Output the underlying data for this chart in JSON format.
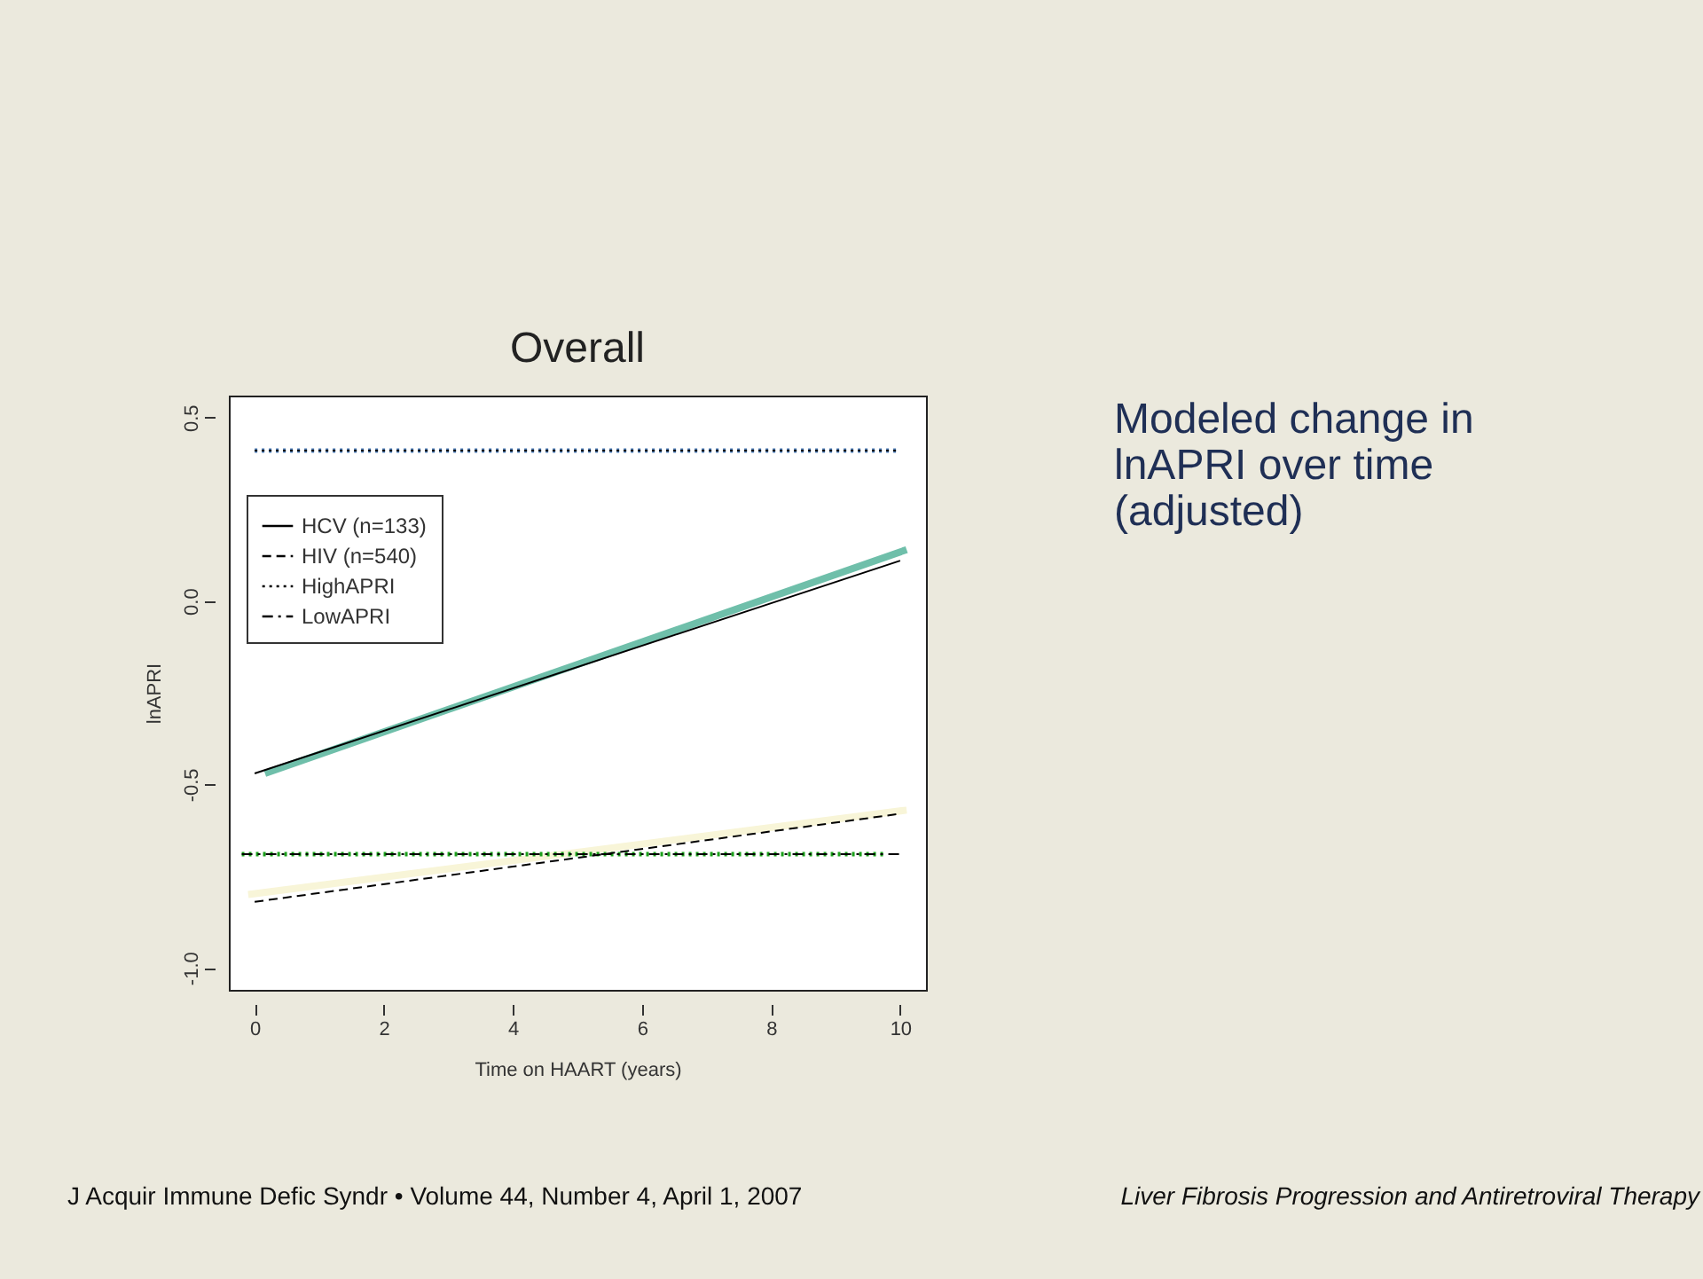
{
  "chart_data": {
    "type": "line",
    "title": "Overall",
    "xlabel": "Time on HAART (years)",
    "ylabel": "lnAPRI",
    "xlim": [
      -0.4,
      10.4
    ],
    "xticks": [
      0,
      2,
      4,
      6,
      8,
      10
    ],
    "ylim": [
      -1.06,
      0.56
    ],
    "yticks": [
      {
        "value": -1.0,
        "label": "-1.0"
      },
      {
        "value": -0.5,
        "label": "-0.5"
      },
      {
        "value": 0.0,
        "label": "0.0"
      },
      {
        "value": 0.5,
        "label": "0.5"
      }
    ],
    "grid": false,
    "legend": "top left",
    "marker": "none",
    "series": [
      {
        "color": "#6fbfaa",
        "x": [
          0.16,
          10.1
        ],
        "values": [
          -0.47,
          0.14
        ],
        "line_style": "solid"
      },
      {
        "color": "#f8f5d8",
        "x": [
          -0.1,
          10.1
        ],
        "values": [
          -0.8,
          -0.57
        ],
        "line_style": "solid"
      },
      {
        "color": "#4a7ab5",
        "x": [
          0,
          10
        ],
        "values": [
          0.41,
          0.41
        ],
        "line_style": "dotted"
      },
      {
        "color": "#1aa01a",
        "x": [
          -0.2,
          9.8
        ],
        "values": [
          -0.69,
          -0.69
        ],
        "line_style": "dotted"
      },
      {
        "name": "HCV (n=133)",
        "color": "#000000",
        "x": [
          0,
          10
        ],
        "values": [
          -0.47,
          0.11
        ],
        "line_style": "solid"
      },
      {
        "name": "HIV (n=540)",
        "color": "#000000",
        "x": [
          0,
          10
        ],
        "values": [
          -0.82,
          -0.58
        ],
        "line_style": "dashed"
      },
      {
        "name": "HighAPRI",
        "color": "#000000",
        "x": [
          0,
          10
        ],
        "values": [
          0.41,
          0.41
        ],
        "line_style": "dotted"
      },
      {
        "name": "LowAPRI",
        "color": "#000000",
        "x": [
          -0.2,
          10
        ],
        "values": [
          -0.69,
          -0.69
        ],
        "line_style": "dashdot"
      }
    ],
    "annotations": [
      "Modeled change in lnAPRI over time (adjusted)",
      "J Acquir Immune Defic Syndr • Volume 44, Number 4, April 1, 2007",
      "Liver Fibrosis Progression and Antiretroviral Therapy"
    ]
  }
}
